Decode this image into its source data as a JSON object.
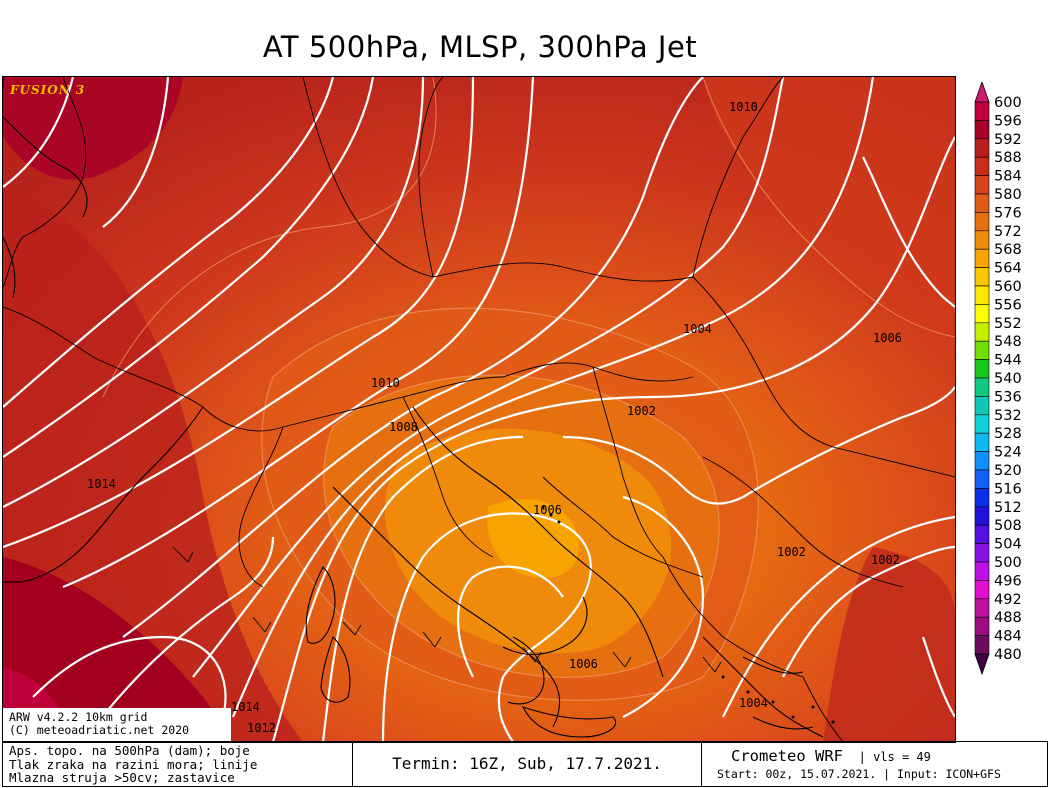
{
  "title": "AT 500hPa, MLSP, 300hPa Jet",
  "branding": "FUSION 3",
  "grid_info": [
    "ARW v4.2.2 10km grid",
    "(C) meteoadriatic.net 2020"
  ],
  "footer": {
    "description": [
      "Aps. topo. na 500hPa (dam); boje",
      "Tlak zraka na razini mora; linije",
      "Mlazna struja >50cv; zastavice"
    ],
    "term": "Termin: 16Z, Sub, 17.7.2021.",
    "model": "Crometeo WRF",
    "vls": "vls = 49",
    "run": "Start: 00z, 15.07.2021. | Input: ICON+GFS"
  },
  "legend": {
    "levels": [
      "600",
      "596",
      "592",
      "588",
      "584",
      "580",
      "576",
      "572",
      "568",
      "564",
      "560",
      "556",
      "552",
      "548",
      "544",
      "540",
      "536",
      "532",
      "528",
      "524",
      "520",
      "516",
      "512",
      "508",
      "504",
      "500",
      "496",
      "492",
      "488",
      "484",
      "480"
    ],
    "colors": [
      "#c0003a",
      "#a80028",
      "#b91c1c",
      "#c62d1a",
      "#d9431b",
      "#e05a18",
      "#e6700f",
      "#f08a0a",
      "#f7a300",
      "#fac800",
      "#fde600",
      "#ffff00",
      "#c4f000",
      "#73dc00",
      "#18c818",
      "#10c880",
      "#10c8b4",
      "#10d0d8",
      "#10b8f0",
      "#1090f8",
      "#1060f8",
      "#0c30e8",
      "#2010d8",
      "#5810e0",
      "#8810e8",
      "#c010e8",
      "#e010d0",
      "#c010a0",
      "#9c0c80",
      "#6c0c5c"
    ],
    "top_arrow_color": "#d01c6c",
    "bottom_arrow_color": "#400040"
  },
  "map": {
    "isobar_labels": [
      "1010",
      "1004",
      "1006",
      "1010",
      "1008",
      "1002",
      "1014",
      "1006",
      "1002",
      "1002",
      "1006",
      "1014",
      "1012",
      "1004"
    ]
  }
}
